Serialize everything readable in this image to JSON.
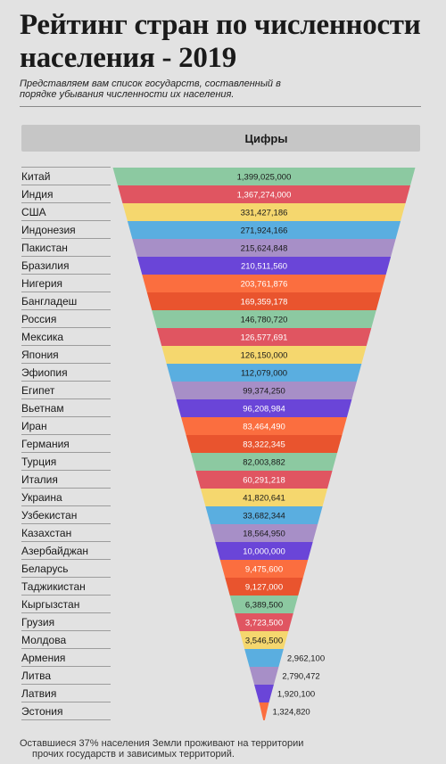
{
  "header": {
    "title": "Рейтинг стран по численности населения - 2019",
    "subtitle": "Представляем вам список государств, составленный в порядке убывания численности их населения."
  },
  "table": {
    "column_header": "Цифры"
  },
  "footnote": {
    "line1": "Оставшиеся 37% населения Земли проживают на территории",
    "line2": "прочих государств и зависимых территорий."
  },
  "chart_data": {
    "type": "bar",
    "series_name": "Цифры",
    "categories": [
      "Китай",
      "Индия",
      "США",
      "Индонезия",
      "Пакистан",
      "Бразилия",
      "Нигерия",
      "Бангладеш",
      "Россия",
      "Мексика",
      "Япония",
      "Эфиопия",
      "Египет",
      "Вьетнам",
      "Иран",
      "Германия",
      "Турция",
      "Италия",
      "Украина",
      "Узбекистан",
      "Казахстан",
      "Азербайджан",
      "Беларусь",
      "Таджикистан",
      "Кыргызстан",
      "Грузия",
      "Молдова",
      "Армения",
      "Литва",
      "Латвия",
      "Эстония"
    ],
    "values": [
      1399025000,
      1367274000,
      331427186,
      271924166,
      215624848,
      210511560,
      203761876,
      169359178,
      146780720,
      126577691,
      126150000,
      112079000,
      99374250,
      96208984,
      83464490,
      83322345,
      82003882,
      60291218,
      41820641,
      33682344,
      18564950,
      10000000,
      9475600,
      9127000,
      6389500,
      3723500,
      3546500,
      2962100,
      2790472,
      1920100,
      1324820
    ],
    "labels": [
      "1,399,025,000",
      "1,367,274,000",
      "331,427,186",
      "271,924,166",
      "215,624,848",
      "210,511,560",
      "203,761,876",
      "169,359,178",
      "146,780,720",
      "126,577,691",
      "126,150,000",
      "112,079,000",
      "99,374,250",
      "96,208,984",
      "83,464,490",
      "83,322,345",
      "82,003,882",
      "60,291,218",
      "41,820,641",
      "33,682,344",
      "18,564,950",
      "10,000,000",
      "9,475,600",
      "9,127,000",
      "6,389,500",
      "3,723,500",
      "3,546,500",
      "2,962,100",
      "2,790,472",
      "1,920,100",
      "1,324,820"
    ],
    "colors": [
      "#8cc9a1",
      "#e05561",
      "#f5d76e",
      "#5aaee0",
      "#a78fc7",
      "#6a45d8",
      "#fb6e3f",
      "#e9542e",
      "#8cc9a1",
      "#e05561",
      "#f5d76e",
      "#5aaee0",
      "#a78fc7",
      "#6a45d8",
      "#fb6e3f",
      "#e9542e",
      "#8cc9a1",
      "#e05561",
      "#f5d76e",
      "#5aaee0",
      "#a78fc7",
      "#6a45d8",
      "#fb6e3f",
      "#e9542e",
      "#8cc9a1",
      "#e05561",
      "#f5d76e",
      "#5aaee0",
      "#a78fc7",
      "#6a45d8",
      "#fb6e3f"
    ],
    "label_colors": [
      "dark",
      "light",
      "dark",
      "dark",
      "dark",
      "light",
      "light",
      "light",
      "dark",
      "light",
      "dark",
      "dark",
      "dark",
      "light",
      "light",
      "light",
      "dark",
      "light",
      "dark",
      "dark",
      "dark",
      "light",
      "light",
      "light",
      "dark",
      "light",
      "dark",
      "dark",
      "dark",
      "dark",
      "dark"
    ],
    "label_outside": [
      false,
      false,
      false,
      false,
      false,
      false,
      false,
      false,
      false,
      false,
      false,
      false,
      false,
      false,
      false,
      false,
      false,
      false,
      false,
      false,
      false,
      false,
      false,
      false,
      false,
      false,
      false,
      true,
      true,
      true,
      true
    ]
  }
}
